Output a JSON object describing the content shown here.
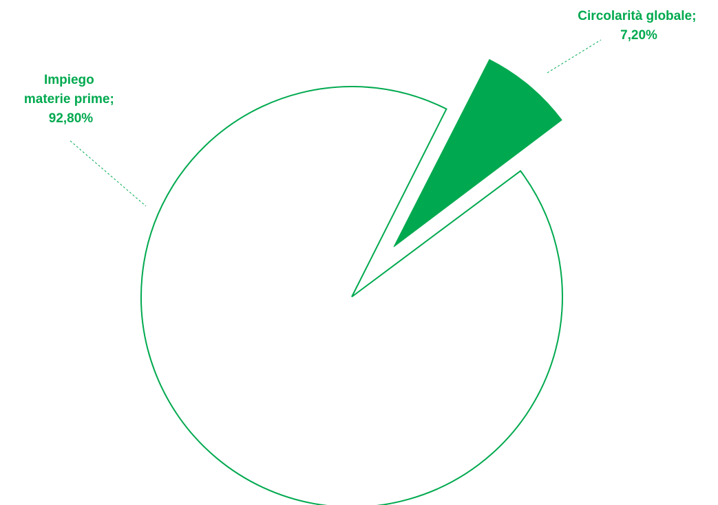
{
  "chart_data": {
    "type": "pie",
    "slices": [
      {
        "label_lines": [
          "Impiego",
          "materie prime;",
          "92,80%"
        ],
        "value": 92.8,
        "style": "outline"
      },
      {
        "label_lines": [
          "Circolarità globale;",
          "7,20%"
        ],
        "value": 7.2,
        "style": "filled",
        "exploded": true
      }
    ],
    "colors": {
      "accent": "#00a94f",
      "background": "#ffffff"
    }
  }
}
